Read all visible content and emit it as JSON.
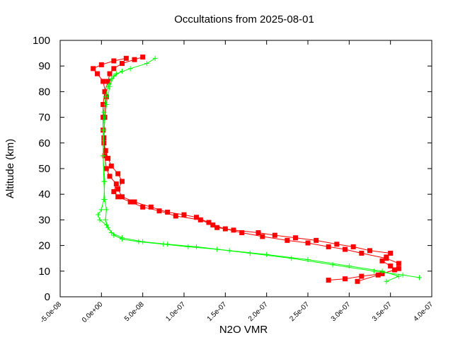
{
  "chart_data": {
    "type": "line",
    "title": "Occultations from 2025-08-01",
    "xlabel": "N2O VMR",
    "ylabel": "Altitude (km)",
    "xlim": [
      -5e-08,
      4e-07
    ],
    "ylim": [
      0,
      100
    ],
    "x_ticks": [
      -5e-08,
      0,
      5e-08,
      1e-07,
      1.5e-07,
      2e-07,
      2.5e-07,
      3e-07,
      3.5e-07,
      4e-07
    ],
    "x_tick_labels": [
      "-5.0e-08",
      "0.0e+00",
      "5.0e-08",
      "1.0e-07",
      "1.5e-07",
      "2.0e-07",
      "2.5e-07",
      "3.0e-07",
      "3.5e-07",
      "4.0e-07"
    ],
    "y_ticks": [
      0,
      10,
      20,
      30,
      40,
      50,
      60,
      70,
      80,
      90,
      100
    ],
    "y_tick_labels": [
      "0",
      "10",
      "20",
      "30",
      "40",
      "50",
      "60",
      "70",
      "80",
      "90",
      "100"
    ],
    "grid": false,
    "legend": "none",
    "series": [
      {
        "color": "#ff0000",
        "marker": "filled-square",
        "profiles": [
          {
            "x": [
              2.75e-07,
              2.95e-07,
              3.15e-07,
              3.4e-07,
              3.55e-07,
              3.5e-07,
              3.4e-07,
              3.45e-07,
              3.5e-07,
              3.25e-07,
              3.05e-07,
              2.85e-07,
              2.6e-07,
              2.35e-07,
              2.1e-07,
              1.9e-07,
              1.6e-07,
              1.4e-07,
              1.3e-07,
              1.15e-07,
              1e-07,
              8e-08,
              6e-08,
              4e-08,
              2.5e-08,
              2e-08,
              2.5e-08,
              2e-08,
              1.2e-08,
              8e-09,
              5e-09,
              3e-09,
              2e-09,
              2e-09,
              2e-09,
              4e-09,
              8e-09,
              1e-08,
              1.5e-08,
              2.5e-08,
              4e-08,
              5e-08
            ],
            "y": [
              6.5,
              7.0,
              8.0,
              9.0,
              10.5,
              12.0,
              14.0,
              15.5,
              17.0,
              18.0,
              19.5,
              20.5,
              22.0,
              23.0,
              24.0,
              25.0,
              26.0,
              27.0,
              29.0,
              31.0,
              32.0,
              33.0,
              35.0,
              37.0,
              39.0,
              42.0,
              45.0,
              48.0,
              51.0,
              54.0,
              57.0,
              60.0,
              65.0,
              70.0,
              75.0,
              80.0,
              84.0,
              87.0,
              89.0,
              91.0,
              92.5,
              93.5
            ]
          },
          {
            "x": [
              3.1e-07,
              3.35e-07,
              3.6e-07,
              3.6e-07,
              3.45e-07,
              3.15e-07,
              2.95e-07,
              2.75e-07,
              2.5e-07,
              2.25e-07,
              1.95e-07,
              1.7e-07,
              1.5e-07,
              1.35e-07,
              1.2e-07,
              9e-08,
              7e-08,
              5e-08,
              3.5e-08,
              2e-08,
              1.5e-08,
              1.8e-08,
              1e-08,
              6e-09,
              4e-09,
              3e-09,
              4e-09,
              6e-09,
              2e-09,
              -5e-09,
              -1e-08,
              0,
              1.5e-08,
              3e-08
            ],
            "y": [
              6.0,
              8.5,
              11.0,
              13.0,
              15.0,
              17.0,
              18.5,
              19.5,
              21.0,
              22.0,
              23.5,
              25.0,
              26.5,
              28.0,
              30.0,
              31.5,
              33.5,
              35.0,
              37.0,
              39.0,
              41.0,
              44.0,
              47.0,
              50.0,
              55.0,
              62.0,
              70.0,
              78.0,
              84.0,
              87.0,
              89.0,
              90.5,
              92.0,
              93.0
            ]
          }
        ]
      },
      {
        "color": "#00ff00",
        "marker": "plus",
        "profiles": [
          {
            "x": [
              3.85e-07,
              3.65e-07,
              3.3e-07,
              2.8e-07,
              2.3e-07,
              1.8e-07,
              1.4e-07,
              1.05e-07,
              7.5e-08,
              4.5e-08,
              2.5e-08,
              1.5e-08,
              8e-09,
              5e-09,
              6e-09,
              4e-09,
              3e-09,
              2e-09,
              2e-09,
              3e-09,
              5e-09,
              8e-09,
              1.2e-08,
              1.8e-08,
              3.5e-08,
              5.5e-08,
              6.5e-08
            ],
            "y": [
              7.5,
              8.5,
              10.0,
              12.5,
              15.0,
              17.0,
              18.5,
              19.5,
              20.5,
              21.5,
              22.5,
              24.0,
              27.0,
              30.0,
              34.0,
              38.0,
              45.0,
              55.0,
              65.0,
              72.0,
              78.0,
              82.0,
              85.0,
              87.0,
              89.0,
              91.0,
              93.0
            ]
          },
          {
            "x": [
              3.45e-07,
              3.6e-07,
              3.4e-07,
              3e-07,
              2.5e-07,
              2e-07,
              1.55e-07,
              1.15e-07,
              8e-08,
              5e-08,
              2.5e-08,
              1.2e-08,
              6e-09,
              -2e-09,
              -4e-09,
              0,
              3e-09,
              4e-09,
              2e-09,
              3e-09,
              6e-09,
              1e-08,
              1.5e-08,
              2.5e-08
            ],
            "y": [
              6.0,
              8.0,
              10.0,
              12.0,
              14.5,
              16.5,
              18.0,
              19.5,
              20.5,
              21.5,
              23.0,
              25.0,
              28.0,
              30.0,
              32.0,
              34.0,
              38.0,
              45.0,
              55.0,
              65.0,
              75.0,
              82.0,
              86.0,
              88.0
            ]
          }
        ]
      }
    ]
  }
}
